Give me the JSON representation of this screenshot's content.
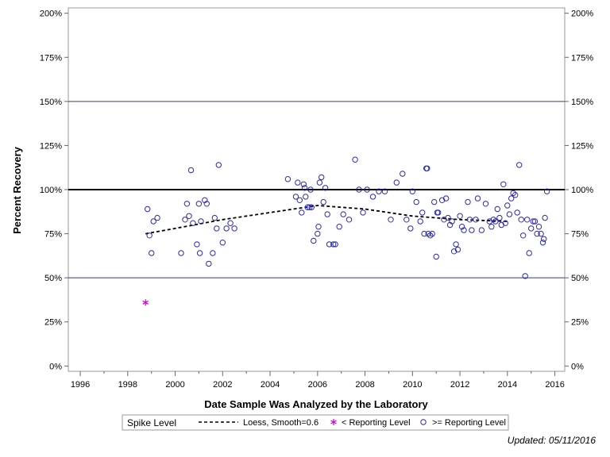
{
  "chart_data": {
    "type": "scatter",
    "xlabel": "Date Sample Was Analyzed by the Laboratory",
    "ylabel": "Percent Recovery",
    "xlim": [
      "1995-07-01",
      "2016-06-01"
    ],
    "ylim": [
      -3,
      203
    ],
    "x_ticks": [
      "1996",
      "1998",
      "2000",
      "2002",
      "2004",
      "2006",
      "2008",
      "2010",
      "2012",
      "2014",
      "2016"
    ],
    "y_ticks": [
      "0%",
      "25%",
      "50%",
      "75%",
      "100%",
      "125%",
      "150%",
      "175%",
      "200%"
    ],
    "reference_lines": [
      {
        "y": 50,
        "style": "thin"
      },
      {
        "y": 100,
        "style": "bold"
      },
      {
        "y": 150,
        "style": "thin"
      }
    ],
    "legend": {
      "title": "Spike Level",
      "items": [
        "Loess, Smooth=0.6",
        "< Reporting Level",
        ">= Reporting Level"
      ]
    },
    "colors": {
      "circle": "#2b2bb0",
      "star": "#cc00cc",
      "loess": "#000000"
    },
    "series": [
      {
        "name": "Loess, Smooth=0.6",
        "style": "dashed-line",
        "points": [
          [
            "1998-10-01",
            75
          ],
          [
            "2000-01-01",
            78
          ],
          [
            "2002-01-01",
            83
          ],
          [
            "2004-01-01",
            87
          ],
          [
            "2006-01-01",
            91
          ],
          [
            "2008-01-01",
            89
          ],
          [
            "2010-01-01",
            85
          ],
          [
            "2012-01-01",
            83
          ],
          [
            "2014-01-01",
            82
          ]
        ]
      },
      {
        "name": "< Reporting Level",
        "style": "star",
        "points": [
          [
            "1998-10-01",
            36
          ]
        ]
      },
      {
        "name": ">= Reporting Level",
        "style": "circle",
        "points": [
          [
            "1998-11-01",
            89
          ],
          [
            "1998-12-01",
            74
          ],
          [
            "1999-01-01",
            64
          ],
          [
            "1999-02-01",
            82
          ],
          [
            "1999-04-01",
            84
          ],
          [
            "2000-04-01",
            64
          ],
          [
            "2000-06-01",
            83
          ],
          [
            "2000-07-01",
            92
          ],
          [
            "2000-08-01",
            85
          ],
          [
            "2000-09-01",
            111
          ],
          [
            "2000-10-01",
            81
          ],
          [
            "2000-12-01",
            69
          ],
          [
            "2001-01-01",
            92
          ],
          [
            "2001-01-15",
            64
          ],
          [
            "2001-02-01",
            82
          ],
          [
            "2001-04-01",
            94
          ],
          [
            "2001-05-01",
            92
          ],
          [
            "2001-06-01",
            58
          ],
          [
            "2001-08-01",
            64
          ],
          [
            "2001-09-01",
            84
          ],
          [
            "2001-10-01",
            78
          ],
          [
            "2001-11-01",
            114
          ],
          [
            "2002-01-01",
            70
          ],
          [
            "2002-03-01",
            78
          ],
          [
            "2002-05-01",
            81
          ],
          [
            "2002-07-01",
            78
          ],
          [
            "2004-10-01",
            106
          ],
          [
            "2005-02-01",
            96
          ],
          [
            "2005-03-01",
            104
          ],
          [
            "2005-04-01",
            94
          ],
          [
            "2005-05-01",
            87
          ],
          [
            "2005-06-01",
            103
          ],
          [
            "2005-06-15",
            101
          ],
          [
            "2005-07-01",
            96
          ],
          [
            "2005-08-01",
            90
          ],
          [
            "2005-09-01",
            90
          ],
          [
            "2005-09-15",
            100
          ],
          [
            "2005-10-01",
            90
          ],
          [
            "2005-11-01",
            71
          ],
          [
            "2006-01-01",
            75
          ],
          [
            "2006-01-15",
            79
          ],
          [
            "2006-02-01",
            104
          ],
          [
            "2006-03-01",
            107
          ],
          [
            "2006-04-01",
            93
          ],
          [
            "2006-05-01",
            101
          ],
          [
            "2006-06-01",
            86
          ],
          [
            "2006-07-01",
            69
          ],
          [
            "2006-09-01",
            69
          ],
          [
            "2006-10-01",
            69
          ],
          [
            "2006-12-01",
            79
          ],
          [
            "2007-02-01",
            86
          ],
          [
            "2007-05-01",
            83
          ],
          [
            "2007-08-01",
            117
          ],
          [
            "2007-10-01",
            100
          ],
          [
            "2007-12-01",
            87
          ],
          [
            "2008-02-01",
            100
          ],
          [
            "2008-05-01",
            96
          ],
          [
            "2008-08-01",
            99
          ],
          [
            "2008-11-01",
            99
          ],
          [
            "2009-02-01",
            83
          ],
          [
            "2009-05-01",
            104
          ],
          [
            "2009-08-01",
            109
          ],
          [
            "2009-10-01",
            83
          ],
          [
            "2009-12-01",
            78
          ],
          [
            "2010-01-01",
            99
          ],
          [
            "2010-03-01",
            93
          ],
          [
            "2010-05-01",
            82
          ],
          [
            "2010-06-01",
            87
          ],
          [
            "2010-07-01",
            75
          ],
          [
            "2010-08-01",
            112
          ],
          [
            "2010-08-15",
            112
          ],
          [
            "2010-09-01",
            75
          ],
          [
            "2010-10-01",
            74
          ],
          [
            "2010-11-01",
            75
          ],
          [
            "2010-12-01",
            93
          ],
          [
            "2011-01-01",
            62
          ],
          [
            "2011-01-15",
            87
          ],
          [
            "2011-02-01",
            87
          ],
          [
            "2011-04-01",
            94
          ],
          [
            "2011-05-01",
            83
          ],
          [
            "2011-06-01",
            95
          ],
          [
            "2011-07-01",
            84
          ],
          [
            "2011-08-01",
            80
          ],
          [
            "2011-09-01",
            82
          ],
          [
            "2011-10-01",
            65
          ],
          [
            "2011-11-01",
            69
          ],
          [
            "2011-12-01",
            66
          ],
          [
            "2012-01-01",
            85
          ],
          [
            "2012-02-01",
            79
          ],
          [
            "2012-03-01",
            77
          ],
          [
            "2012-05-01",
            93
          ],
          [
            "2012-06-01",
            83
          ],
          [
            "2012-07-01",
            77
          ],
          [
            "2012-09-01",
            83
          ],
          [
            "2012-10-01",
            95
          ],
          [
            "2012-12-01",
            77
          ],
          [
            "2013-02-01",
            92
          ],
          [
            "2013-04-01",
            82
          ],
          [
            "2013-05-01",
            79
          ],
          [
            "2013-06-01",
            83
          ],
          [
            "2013-07-01",
            82
          ],
          [
            "2013-08-01",
            89
          ],
          [
            "2013-09-01",
            84
          ],
          [
            "2013-10-01",
            80
          ],
          [
            "2013-11-01",
            103
          ],
          [
            "2013-12-01",
            81
          ],
          [
            "2014-01-01",
            91
          ],
          [
            "2014-02-01",
            86
          ],
          [
            "2014-03-01",
            95
          ],
          [
            "2014-04-01",
            98
          ],
          [
            "2014-05-01",
            97
          ],
          [
            "2014-06-01",
            87
          ],
          [
            "2014-07-01",
            114
          ],
          [
            "2014-08-01",
            83
          ],
          [
            "2014-09-01",
            74
          ],
          [
            "2014-10-01",
            51
          ],
          [
            "2014-11-01",
            83
          ],
          [
            "2014-12-01",
            64
          ],
          [
            "2015-01-01",
            78
          ],
          [
            "2015-02-01",
            82
          ],
          [
            "2015-03-01",
            82
          ],
          [
            "2015-04-01",
            75
          ],
          [
            "2015-05-01",
            79
          ],
          [
            "2015-06-01",
            75
          ],
          [
            "2015-07-01",
            70
          ],
          [
            "2015-07-15",
            72
          ],
          [
            "2015-08-01",
            84
          ],
          [
            "2015-09-01",
            99
          ]
        ]
      }
    ]
  },
  "footer": {
    "updated": "Updated: 05/11/2016"
  }
}
